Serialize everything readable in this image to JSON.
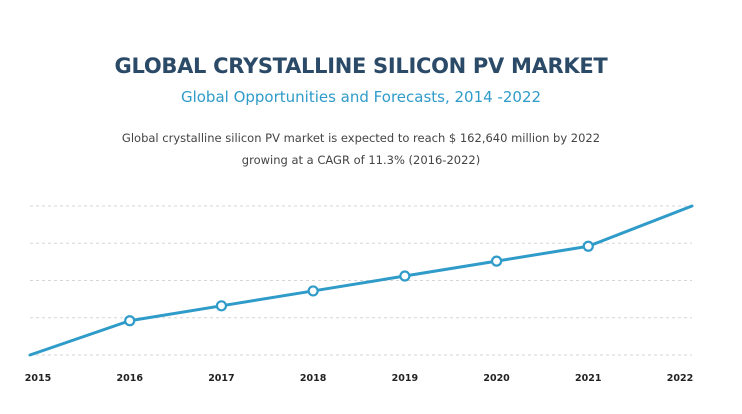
{
  "header": {
    "title": "GLOBAL CRYSTALLINE SILICON PV MARKET",
    "subtitle": "Global Opportunities and Forecasts, 2014 -2022",
    "description_line1": "Global crystalline silicon PV market is expected to reach $ 162,640 million by 2022",
    "description_line2": "growing at a CAGR of 11.3% (2016-2022)"
  },
  "chart_data": {
    "type": "line",
    "title": "GLOBAL CRYSTALLINE SILICON PV MARKET",
    "subtitle": "Global Opportunities and Forecasts, 2014 -2022",
    "xlabel": "",
    "ylabel": "",
    "categories": [
      "2015",
      "2016",
      "2017",
      "2018",
      "2019",
      "2020",
      "2021",
      "2022"
    ],
    "series": [
      {
        "values": [
          0.0,
          0.23,
          0.33,
          0.43,
          0.53,
          0.63,
          0.73,
          1.0
        ],
        "markers": [
          false,
          true,
          true,
          true,
          true,
          true,
          true,
          false
        ]
      }
    ],
    "ylim": [
      0,
      1.0
    ],
    "gridlines_y": [
      0.0,
      0.25,
      0.5,
      0.75,
      1.0
    ],
    "grid": true,
    "y_tick_labels_shown": false,
    "colors": {
      "line": "#2f9bc9",
      "grid": "#d5d5d5",
      "marker_fill": "#ffffff"
    }
  }
}
